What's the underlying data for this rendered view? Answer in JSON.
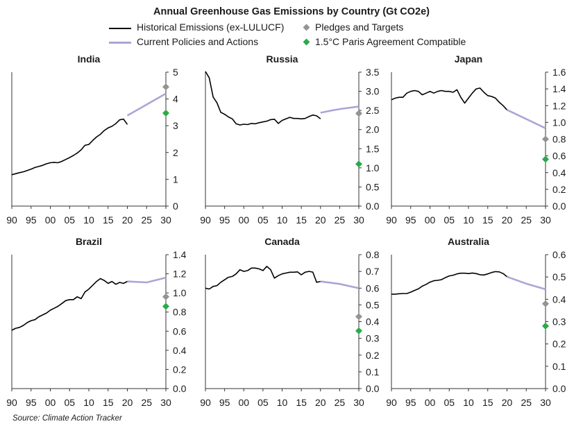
{
  "title": "Annual Greenhouse Gas Emissions by Country (Gt CO2e)",
  "legend": {
    "historical": "Historical Emissions (ex-LULUCF)",
    "current": "Current Policies and Actions",
    "pledges": "Pledges and Targets",
    "paris": "1.5°C Paris Agreement Compatible"
  },
  "colors": {
    "historical": "#000000",
    "current": "#a9a6d6",
    "pledges": "#949494",
    "paris": "#2aab4b"
  },
  "source": "Source: Climate Action Tracker",
  "chart_data": [
    {
      "type": "line",
      "title": "India",
      "xlabel": "",
      "ylabel": "",
      "xlim": [
        1990,
        2030
      ],
      "x_ticks": [
        1990,
        1995,
        2000,
        2005,
        2010,
        2015,
        2020,
        2025,
        2030
      ],
      "x_tick_labels": [
        "90",
        "95",
        "00",
        "05",
        "10",
        "15",
        "20",
        "25",
        "30"
      ],
      "ylim": [
        0,
        5
      ],
      "y_ticks": [
        0,
        1,
        2,
        3,
        4,
        5
      ],
      "y_tick_labels": [
        "0",
        "1",
        "2",
        "3",
        "4",
        "5"
      ],
      "series": [
        {
          "name": "Historical Emissions (ex-LULUCF)",
          "x": [
            1990,
            1991,
            1992,
            1993,
            1994,
            1995,
            1996,
            1997,
            1998,
            1999,
            2000,
            2001,
            2002,
            2003,
            2004,
            2005,
            2006,
            2007,
            2008,
            2009,
            2010,
            2011,
            2012,
            2013,
            2014,
            2015,
            2016,
            2017,
            2018,
            2019,
            2020
          ],
          "y": [
            1.17,
            1.21,
            1.25,
            1.28,
            1.33,
            1.38,
            1.44,
            1.48,
            1.52,
            1.58,
            1.62,
            1.63,
            1.62,
            1.67,
            1.74,
            1.81,
            1.89,
            1.98,
            2.1,
            2.27,
            2.3,
            2.45,
            2.58,
            2.68,
            2.82,
            2.92,
            2.98,
            3.08,
            3.22,
            3.25,
            3.05
          ]
        },
        {
          "name": "Current Policies and Actions",
          "x": [
            2020,
            2030
          ],
          "y": [
            3.38,
            4.2
          ]
        },
        {
          "name": "Pledges and Targets",
          "x": [
            2030
          ],
          "y": [
            4.45
          ]
        },
        {
          "name": "1.5°C Paris Agreement Compatible",
          "x": [
            2030
          ],
          "y": [
            3.47
          ]
        }
      ]
    },
    {
      "type": "line",
      "title": "Russia",
      "xlabel": "",
      "ylabel": "",
      "xlim": [
        1990,
        2030
      ],
      "x_ticks": [
        1990,
        1995,
        2000,
        2005,
        2010,
        2015,
        2020,
        2025,
        2030
      ],
      "x_tick_labels": [
        "90",
        "95",
        "00",
        "05",
        "10",
        "15",
        "20",
        "25",
        "30"
      ],
      "ylim": [
        0,
        3.5
      ],
      "y_ticks": [
        0,
        0.5,
        1,
        1.5,
        2,
        2.5,
        3,
        3.5
      ],
      "y_tick_labels": [
        "0.0",
        "0.5",
        "1.0",
        "1.5",
        "2.0",
        "2.5",
        "3.0",
        "3.5"
      ],
      "series": [
        {
          "name": "Historical Emissions (ex-LULUCF)",
          "x": [
            1990,
            1991,
            1992,
            1993,
            1994,
            1995,
            1996,
            1997,
            1998,
            1999,
            2000,
            2001,
            2002,
            2003,
            2004,
            2005,
            2006,
            2007,
            2008,
            2009,
            2010,
            2011,
            2012,
            2013,
            2014,
            2015,
            2016,
            2017,
            2018,
            2019,
            2020
          ],
          "y": [
            3.52,
            3.35,
            2.85,
            2.7,
            2.45,
            2.4,
            2.33,
            2.28,
            2.15,
            2.12,
            2.14,
            2.13,
            2.16,
            2.15,
            2.18,
            2.2,
            2.22,
            2.26,
            2.27,
            2.16,
            2.24,
            2.28,
            2.32,
            2.29,
            2.29,
            2.28,
            2.29,
            2.34,
            2.38,
            2.36,
            2.28
          ]
        },
        {
          "name": "Current Policies and Actions",
          "x": [
            2020,
            2023,
            2026,
            2030
          ],
          "y": [
            2.44,
            2.5,
            2.55,
            2.6
          ]
        },
        {
          "name": "Pledges and Targets",
          "x": [
            2030
          ],
          "y": [
            2.42
          ]
        },
        {
          "name": "1.5°C Paris Agreement Compatible",
          "x": [
            2030
          ],
          "y": [
            1.1
          ]
        }
      ]
    },
    {
      "type": "line",
      "title": "Japan",
      "xlabel": "",
      "ylabel": "",
      "xlim": [
        1990,
        2030
      ],
      "x_ticks": [
        1990,
        1995,
        2000,
        2005,
        2010,
        2015,
        2020,
        2025,
        2030
      ],
      "x_tick_labels": [
        "90",
        "95",
        "00",
        "05",
        "10",
        "15",
        "20",
        "25",
        "30"
      ],
      "ylim": [
        0,
        1.6
      ],
      "y_ticks": [
        0,
        0.2,
        0.4,
        0.6,
        0.8,
        1.0,
        1.2,
        1.4,
        1.6
      ],
      "y_tick_labels": [
        "0.0",
        "0.2",
        "0.4",
        "0.6",
        "0.8",
        "1.0",
        "1.2",
        "1.4",
        "1.6"
      ],
      "series": [
        {
          "name": "Historical Emissions (ex-LULUCF)",
          "x": [
            1990,
            1991,
            1992,
            1993,
            1994,
            1995,
            1996,
            1997,
            1998,
            1999,
            2000,
            2001,
            2002,
            2003,
            2004,
            2005,
            2006,
            2007,
            2008,
            2009,
            2010,
            2011,
            2012,
            2013,
            2014,
            2015,
            2016,
            2017,
            2018,
            2019,
            2020
          ],
          "y": [
            1.27,
            1.29,
            1.3,
            1.3,
            1.35,
            1.37,
            1.38,
            1.37,
            1.33,
            1.35,
            1.37,
            1.35,
            1.37,
            1.38,
            1.37,
            1.37,
            1.36,
            1.39,
            1.3,
            1.23,
            1.29,
            1.35,
            1.4,
            1.41,
            1.36,
            1.32,
            1.31,
            1.29,
            1.24,
            1.2,
            1.15
          ]
        },
        {
          "name": "Current Policies and Actions",
          "x": [
            2020,
            2030
          ],
          "y": [
            1.15,
            0.93
          ]
        },
        {
          "name": "Pledges and Targets",
          "x": [
            2030
          ],
          "y": [
            0.8
          ]
        },
        {
          "name": "1.5°C Paris Agreement Compatible",
          "x": [
            2030
          ],
          "y": [
            0.56
          ]
        }
      ]
    },
    {
      "type": "line",
      "title": "Brazil",
      "xlabel": "",
      "ylabel": "",
      "xlim": [
        1990,
        2030
      ],
      "x_ticks": [
        1990,
        1995,
        2000,
        2005,
        2010,
        2015,
        2020,
        2025,
        2030
      ],
      "x_tick_labels": [
        "90",
        "95",
        "00",
        "05",
        "10",
        "15",
        "20",
        "25",
        "30"
      ],
      "ylim": [
        0,
        1.4
      ],
      "y_ticks": [
        0,
        0.2,
        0.4,
        0.6,
        0.8,
        1.0,
        1.2,
        1.4
      ],
      "y_tick_labels": [
        "0.0",
        "0.2",
        "0.4",
        "0.6",
        "0.8",
        "1.0",
        "1.2",
        "1.4"
      ],
      "series": [
        {
          "name": "Historical Emissions (ex-LULUCF)",
          "x": [
            1990,
            1991,
            1992,
            1993,
            1994,
            1995,
            1996,
            1997,
            1998,
            1999,
            2000,
            2001,
            2002,
            2003,
            2004,
            2005,
            2006,
            2007,
            2008,
            2009,
            2010,
            2011,
            2012,
            2013,
            2014,
            2015,
            2016,
            2017,
            2018,
            2019,
            2020
          ],
          "y": [
            0.61,
            0.63,
            0.64,
            0.66,
            0.69,
            0.71,
            0.72,
            0.75,
            0.77,
            0.79,
            0.82,
            0.84,
            0.86,
            0.89,
            0.92,
            0.93,
            0.93,
            0.96,
            0.94,
            1.01,
            1.04,
            1.08,
            1.12,
            1.15,
            1.13,
            1.1,
            1.12,
            1.09,
            1.11,
            1.1,
            1.12
          ]
        },
        {
          "name": "Current Policies and Actions",
          "x": [
            2020,
            2025,
            2030
          ],
          "y": [
            1.12,
            1.11,
            1.16
          ]
        },
        {
          "name": "Pledges and Targets",
          "x": [
            2030
          ],
          "y": [
            0.96
          ]
        },
        {
          "name": "1.5°C Paris Agreement Compatible",
          "x": [
            2030
          ],
          "y": [
            0.86
          ]
        }
      ]
    },
    {
      "type": "line",
      "title": "Canada",
      "xlabel": "",
      "ylabel": "",
      "xlim": [
        1990,
        2030
      ],
      "x_ticks": [
        1990,
        1995,
        2000,
        2005,
        2010,
        2015,
        2020,
        2025,
        2030
      ],
      "x_tick_labels": [
        "90",
        "95",
        "00",
        "05",
        "10",
        "15",
        "20",
        "25",
        "30"
      ],
      "ylim": [
        0,
        0.8
      ],
      "y_ticks": [
        0,
        0.1,
        0.2,
        0.3,
        0.4,
        0.5,
        0.6,
        0.7,
        0.8
      ],
      "y_tick_labels": [
        "0.0",
        "0.1",
        "0.2",
        "0.3",
        "0.4",
        "0.5",
        "0.6",
        "0.7",
        "0.8"
      ],
      "series": [
        {
          "name": "Historical Emissions (ex-LULUCF)",
          "x": [
            1990,
            1991,
            1992,
            1993,
            1994,
            1995,
            1996,
            1997,
            1998,
            1999,
            2000,
            2001,
            2002,
            2003,
            2004,
            2005,
            2006,
            2007,
            2008,
            2009,
            2010,
            2011,
            2012,
            2013,
            2014,
            2015,
            2016,
            2017,
            2018,
            2019,
            2020
          ],
          "y": [
            0.6,
            0.595,
            0.61,
            0.615,
            0.635,
            0.65,
            0.665,
            0.67,
            0.685,
            0.71,
            0.7,
            0.705,
            0.72,
            0.72,
            0.715,
            0.705,
            0.73,
            0.71,
            0.66,
            0.675,
            0.685,
            0.69,
            0.695,
            0.695,
            0.697,
            0.68,
            0.695,
            0.7,
            0.696,
            0.635,
            0.64
          ]
        },
        {
          "name": "Current Policies and Actions",
          "x": [
            2020,
            2025,
            2030
          ],
          "y": [
            0.64,
            0.625,
            0.6
          ]
        },
        {
          "name": "Pledges and Targets",
          "x": [
            2030
          ],
          "y": [
            0.43
          ]
        },
        {
          "name": "1.5°C Paris Agreement Compatible",
          "x": [
            2030
          ],
          "y": [
            0.345
          ]
        }
      ]
    },
    {
      "type": "line",
      "title": "Australia",
      "xlabel": "",
      "ylabel": "",
      "xlim": [
        1990,
        2030
      ],
      "x_ticks": [
        1990,
        1995,
        2000,
        2005,
        2010,
        2015,
        2020,
        2025,
        2030
      ],
      "x_tick_labels": [
        "90",
        "95",
        "00",
        "05",
        "10",
        "15",
        "20",
        "25",
        "30"
      ],
      "ylim": [
        0,
        0.6
      ],
      "y_ticks": [
        0,
        0.1,
        0.2,
        0.3,
        0.4,
        0.5,
        0.6
      ],
      "y_tick_labels": [
        "0.0",
        "0.1",
        "0.2",
        "0.3",
        "0.4",
        "0.5",
        "0.6"
      ],
      "series": [
        {
          "name": "Historical Emissions (ex-LULUCF)",
          "x": [
            1990,
            1991,
            1992,
            1993,
            1994,
            1995,
            1996,
            1997,
            1998,
            1999,
            2000,
            2001,
            2002,
            2003,
            2004,
            2005,
            2006,
            2007,
            2008,
            2009,
            2010,
            2011,
            2012,
            2013,
            2014,
            2015,
            2016,
            2017,
            2018,
            2019,
            2020
          ],
          "y": [
            0.423,
            0.423,
            0.425,
            0.426,
            0.426,
            0.432,
            0.44,
            0.447,
            0.459,
            0.467,
            0.477,
            0.483,
            0.485,
            0.488,
            0.497,
            0.505,
            0.508,
            0.514,
            0.517,
            0.517,
            0.515,
            0.518,
            0.515,
            0.51,
            0.509,
            0.514,
            0.52,
            0.524,
            0.523,
            0.515,
            0.501
          ]
        },
        {
          "name": "Current Policies and Actions",
          "x": [
            2020,
            2025,
            2030
          ],
          "y": [
            0.501,
            0.47,
            0.445
          ]
        },
        {
          "name": "Pledges and Targets",
          "x": [
            2030
          ],
          "y": [
            0.38
          ]
        },
        {
          "name": "1.5°C Paris Agreement Compatible",
          "x": [
            2030
          ],
          "y": [
            0.28
          ]
        }
      ]
    }
  ]
}
